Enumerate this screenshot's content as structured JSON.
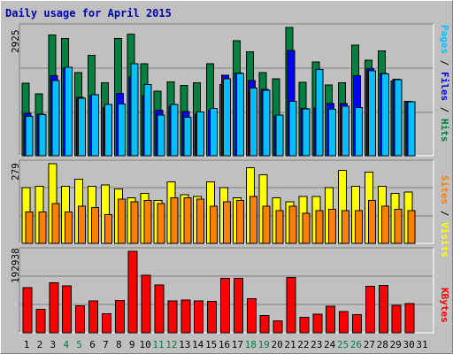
{
  "title": "Daily usage for April 2015",
  "colors": {
    "hits": "#008040",
    "files": "#0000ff",
    "pages": "#00c0ff",
    "visits": "#ffff00",
    "sites": "#ff8000",
    "kbytes": "#ff0000",
    "day_normal": "#000000",
    "day_weekend": "#008040"
  },
  "right_labels": {
    "top": [
      {
        "text": "Pages",
        "color": "#00c0ff"
      },
      {
        "text": " / ",
        "color": "#000000"
      },
      {
        "text": "Files",
        "color": "#0000ff"
      },
      {
        "text": " / ",
        "color": "#000000"
      },
      {
        "text": "Hits",
        "color": "#008040"
      }
    ],
    "middle": [
      {
        "text": "Sites",
        "color": "#ff8000"
      },
      {
        "text": " / ",
        "color": "#000000"
      },
      {
        "text": "Visits",
        "color": "#ffff00"
      }
    ],
    "bottom": [
      {
        "text": "KBytes",
        "color": "#ff0000"
      }
    ]
  },
  "chart_data": [
    {
      "type": "bar",
      "categories": [
        "1",
        "2",
        "3",
        "4",
        "5",
        "6",
        "7",
        "8",
        "9",
        "10",
        "11",
        "12",
        "13",
        "14",
        "15",
        "16",
        "17",
        "18",
        "19",
        "20",
        "21",
        "22",
        "23",
        "24",
        "25",
        "26",
        "27",
        "28",
        "29",
        "30",
        "31"
      ],
      "ylim": [
        0,
        2925
      ],
      "ytick_label": "2925",
      "series": [
        {
          "name": "Hits",
          "values": [
            1655,
            1410,
            2755,
            2670,
            1895,
            2285,
            1665,
            2670,
            2775,
            2100,
            1475,
            1685,
            1600,
            1660,
            2100,
            1625,
            2620,
            2370,
            1895,
            1760,
            2925,
            1675,
            2140,
            1610,
            1665,
            2525,
            2175,
            2395,
            1705,
            1245,
            0
          ]
        },
        {
          "name": "Files",
          "values": [
            965,
            945,
            1830,
            1995,
            1335,
            1370,
            1095,
            1425,
            1800,
            1370,
            1040,
            1125,
            1010,
            950,
            1035,
            1835,
            1890,
            1715,
            1515,
            905,
            2405,
            1080,
            1085,
            1195,
            1195,
            1825,
            1985,
            1880,
            1745,
            1230,
            0
          ]
        },
        {
          "name": "Pages",
          "values": [
            895,
            940,
            1710,
            2020,
            1310,
            1390,
            1170,
            1180,
            2095,
            1625,
            925,
            1175,
            880,
            1000,
            1080,
            1750,
            1880,
            1545,
            1495,
            925,
            1245,
            1070,
            1965,
            1055,
            1130,
            1095,
            1935,
            1865,
            1730,
            1230,
            0
          ]
        }
      ]
    },
    {
      "type": "bar",
      "categories": [
        "1",
        "2",
        "3",
        "4",
        "5",
        "6",
        "7",
        "8",
        "9",
        "10",
        "11",
        "12",
        "13",
        "14",
        "15",
        "16",
        "17",
        "18",
        "19",
        "20",
        "21",
        "22",
        "23",
        "24",
        "25",
        "26",
        "27",
        "28",
        "29",
        "30",
        "31"
      ],
      "ylim": [
        0,
        279
      ],
      "ytick_label": "279",
      "series": [
        {
          "name": "Visits",
          "values": [
            196,
            200,
            279,
            200,
            225,
            200,
            205,
            190,
            160,
            175,
            150,
            215,
            170,
            165,
            215,
            195,
            160,
            265,
            240,
            160,
            145,
            165,
            165,
            195,
            255,
            200,
            250,
            200,
            175,
            180,
            0
          ]
        },
        {
          "name": "Sites",
          "values": [
            110,
            110,
            140,
            110,
            130,
            125,
            100,
            155,
            145,
            150,
            140,
            160,
            160,
            155,
            130,
            145,
            150,
            165,
            130,
            115,
            130,
            105,
            115,
            120,
            115,
            115,
            150,
            130,
            120,
            115,
            0
          ]
        }
      ]
    },
    {
      "type": "bar",
      "categories": [
        "1",
        "2",
        "3",
        "4",
        "5",
        "6",
        "7",
        "8",
        "9",
        "10",
        "11",
        "12",
        "13",
        "14",
        "15",
        "16",
        "17",
        "18",
        "19",
        "20",
        "21",
        "22",
        "23",
        "24",
        "25",
        "26",
        "27",
        "28",
        "29",
        "30",
        "31"
      ],
      "ylim": [
        0,
        192938
      ],
      "ytick_label": "192938",
      "series": [
        {
          "name": "KBytes",
          "values": [
            107000,
            56000,
            119000,
            111000,
            64000,
            76000,
            45000,
            77000,
            192938,
            136000,
            113000,
            76000,
            78000,
            76000,
            74000,
            129000,
            129000,
            81000,
            41000,
            28000,
            131000,
            37000,
            44000,
            63000,
            50000,
            43000,
            110000,
            112000,
            65000,
            69000,
            0
          ]
        }
      ]
    }
  ],
  "days": [
    {
      "label": "1",
      "weekend": false
    },
    {
      "label": "2",
      "weekend": false
    },
    {
      "label": "3",
      "weekend": false
    },
    {
      "label": "4",
      "weekend": true
    },
    {
      "label": "5",
      "weekend": true
    },
    {
      "label": "6",
      "weekend": false
    },
    {
      "label": "7",
      "weekend": false
    },
    {
      "label": "8",
      "weekend": false
    },
    {
      "label": "9",
      "weekend": false
    },
    {
      "label": "10",
      "weekend": false
    },
    {
      "label": "11",
      "weekend": true
    },
    {
      "label": "12",
      "weekend": true
    },
    {
      "label": "13",
      "weekend": false
    },
    {
      "label": "14",
      "weekend": false
    },
    {
      "label": "15",
      "weekend": false
    },
    {
      "label": "16",
      "weekend": false
    },
    {
      "label": "17",
      "weekend": false
    },
    {
      "label": "18",
      "weekend": true
    },
    {
      "label": "19",
      "weekend": true
    },
    {
      "label": "20",
      "weekend": false
    },
    {
      "label": "21",
      "weekend": false
    },
    {
      "label": "22",
      "weekend": false
    },
    {
      "label": "23",
      "weekend": false
    },
    {
      "label": "24",
      "weekend": false
    },
    {
      "label": "25",
      "weekend": true
    },
    {
      "label": "26",
      "weekend": true
    },
    {
      "label": "27",
      "weekend": false
    },
    {
      "label": "28",
      "weekend": false
    },
    {
      "label": "29",
      "weekend": false
    },
    {
      "label": "30",
      "weekend": false
    },
    {
      "label": "31",
      "weekend": false
    }
  ]
}
